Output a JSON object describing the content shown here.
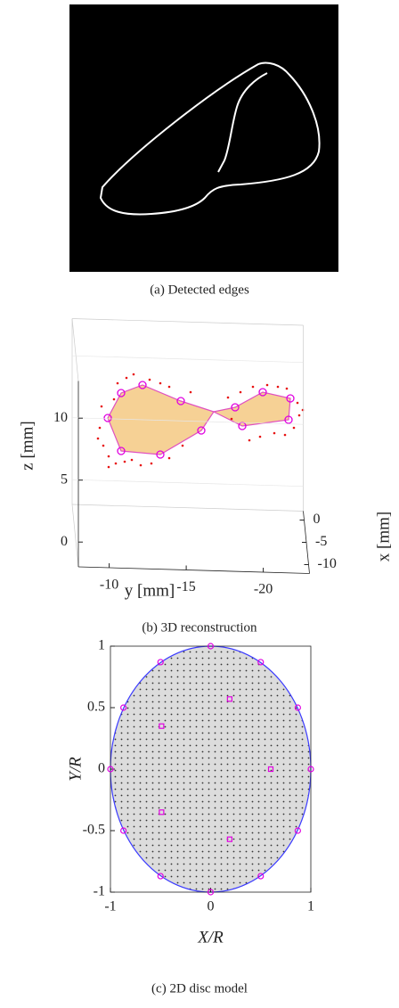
{
  "panel_a": {
    "caption": "(a) Detected edges"
  },
  "chart_data": [
    {
      "type": "surface3d",
      "caption": "(b) 3D reconstruction",
      "xlabel": "x [mm]",
      "ylabel": "y [mm]",
      "zlabel": "z [mm]",
      "xlim": [
        -12,
        2
      ],
      "ylim": [
        -8,
        -23
      ],
      "zlim": [
        -2,
        13
      ],
      "xticks": [
        0,
        -5,
        -10
      ],
      "yticks": [
        -10,
        -15,
        -20
      ],
      "zticks": [
        0,
        5,
        10
      ]
    },
    {
      "type": "scatter",
      "caption": "(c) 2D disc model",
      "xlabel": "X/R",
      "ylabel": "Y/R",
      "xlim": [
        -1,
        1
      ],
      "ylim": [
        -1,
        1
      ],
      "xticks": [
        -1,
        0,
        1
      ],
      "yticks": [
        -1,
        -0.5,
        0,
        0.5,
        1
      ],
      "color": "#e000e0",
      "fill": "#dcdcdc",
      "edge_color": "#3b3bff",
      "series": [
        {
          "marker": "circle",
          "x": [
            1,
            0.87,
            0.5,
            0,
            -0.5,
            -0.87,
            -1,
            -0.87,
            -0.5,
            0,
            0.5,
            0.87
          ],
          "values": [
            0,
            0.5,
            0.87,
            1,
            0.87,
            0.5,
            0,
            -0.5,
            -0.87,
            -1,
            -0.87,
            -0.5
          ]
        },
        {
          "marker": "square",
          "x": [
            0.6,
            0.19,
            -0.49,
            -0.49,
            0.19
          ],
          "values": [
            0,
            0.57,
            0.35,
            -0.35,
            -0.57
          ]
        }
      ]
    }
  ]
}
